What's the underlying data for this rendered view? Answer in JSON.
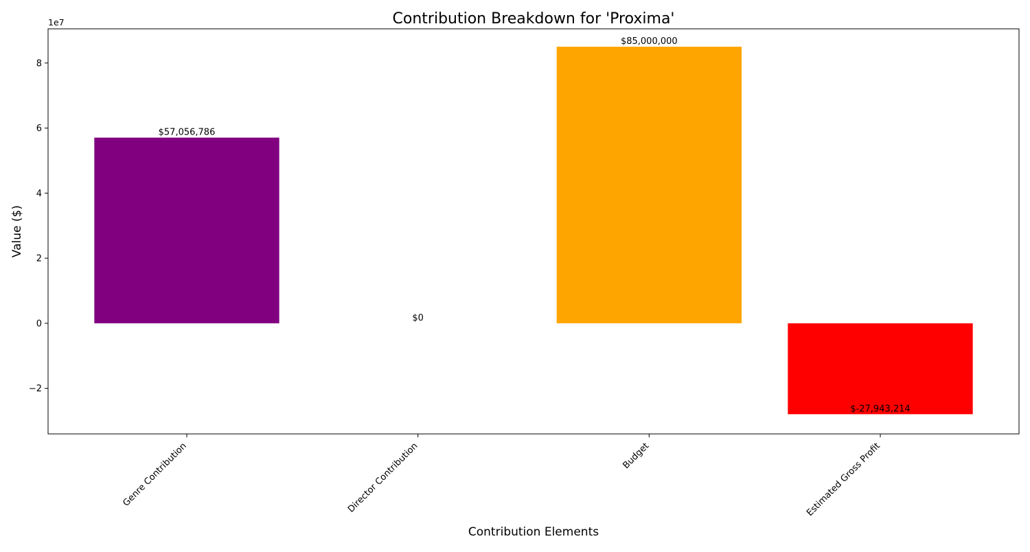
{
  "chart_data": {
    "type": "bar",
    "title": "Contribution Breakdown for 'Proxima'",
    "xlabel": "Contribution Elements",
    "ylabel": "Value ($)",
    "y_offset_label": "1e7",
    "categories": [
      "Genre Contribution",
      "Director Contribution",
      "Budget",
      "Estimated Gross Profit"
    ],
    "values": [
      57056786,
      0,
      85000000,
      -27943214
    ],
    "value_labels": [
      "$57,056,786",
      "$0",
      "$85,000,000",
      "$-27,943,214"
    ],
    "colors": [
      "#800080",
      "#1f77b4",
      "#FFA500",
      "#FF0000"
    ],
    "ylim": [
      -34000000,
      90500000
    ],
    "y_ticks": [
      -20000000,
      0,
      20000000,
      40000000,
      60000000,
      80000000
    ],
    "y_tick_labels": [
      "−2",
      "0",
      "2",
      "4",
      "6",
      "8"
    ],
    "grid": false,
    "legend": "none"
  }
}
